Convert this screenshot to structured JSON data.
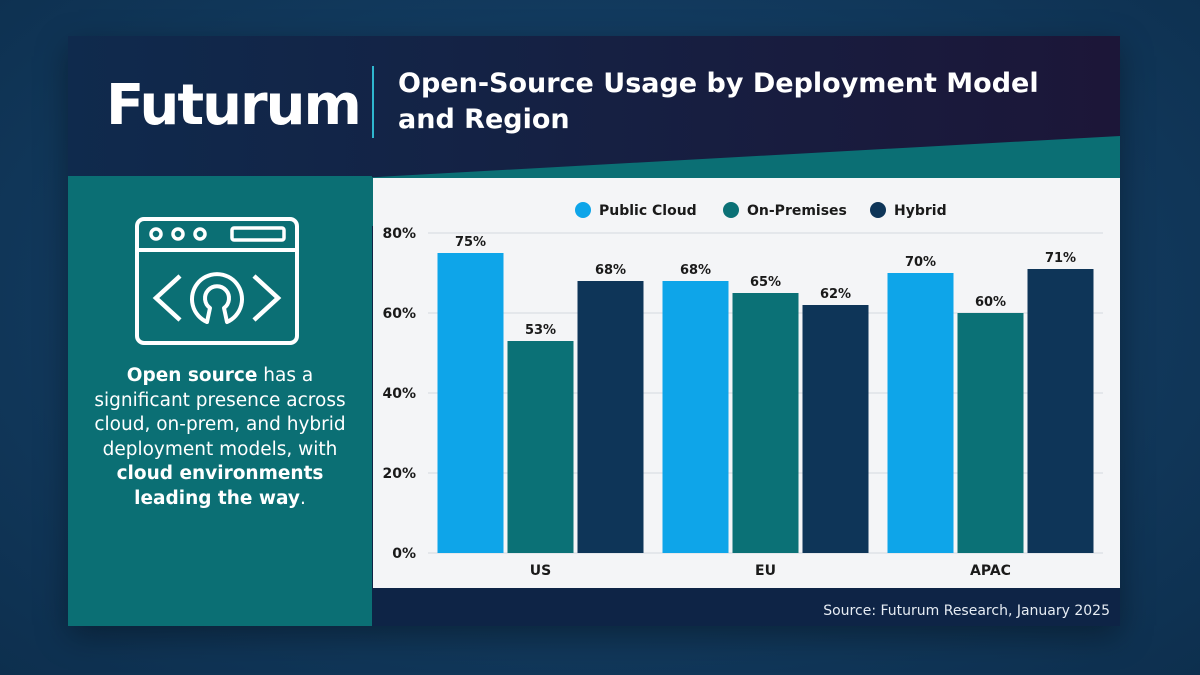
{
  "brand": {
    "logo_text": "Futurum"
  },
  "title": "Open-Source Usage by Deployment Model and Region",
  "blurb": {
    "bold1": "Open source",
    "text1": " has a significant presence across cloud, on-prem, and hybrid deployment models, with ",
    "bold2": "cloud environments leading the way",
    "text2": "."
  },
  "icon": "open-source-browser-window-icon",
  "source": "Source: Futurum Research, January 2025",
  "colors": {
    "public_cloud": "#0ea5e9",
    "on_premises": "#0b7176",
    "hybrid": "#0e3558",
    "teal_panel": "#0b6f74",
    "navy": "#0e2446"
  },
  "chart_data": {
    "type": "bar",
    "categories": [
      "US",
      "EU",
      "APAC"
    ],
    "series": [
      {
        "name": "Public Cloud",
        "values": [
          75,
          68,
          70
        ],
        "labels": [
          "75%",
          "68%",
          "70%"
        ]
      },
      {
        "name": "On-Premises",
        "values": [
          53,
          65,
          60
        ],
        "labels": [
          "53%",
          "65%",
          "60%"
        ]
      },
      {
        "name": "Hybrid",
        "values": [
          68,
          62,
          71
        ],
        "labels": [
          "68%",
          "62%",
          "71%"
        ]
      }
    ],
    "yticks": [
      "0%",
      "20%",
      "40%",
      "60%",
      "80%"
    ],
    "ylim": [
      0,
      80
    ],
    "grid": true,
    "legend": "top-center",
    "title": "",
    "xlabel": "",
    "ylabel": ""
  }
}
